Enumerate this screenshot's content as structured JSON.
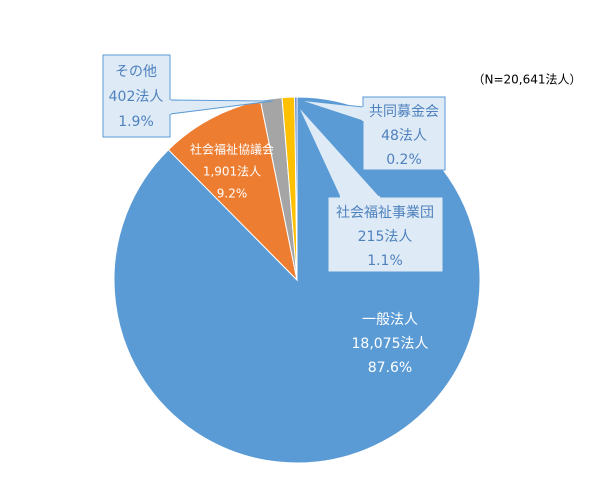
{
  "chart_data": {
    "type": "pie",
    "note": "（N=20,641法人）",
    "categories": [
      "一般法人",
      "社会福祉協議会",
      "その他",
      "社会福祉事業団",
      "共同募金会"
    ],
    "values": [
      87.6,
      9.2,
      1.9,
      1.1,
      0.2
    ],
    "value_labels": [
      "87.6%",
      "9.2%",
      "1.9%",
      "1.1%",
      "0.2%"
    ],
    "counts": [
      18075,
      1901,
      402,
      215,
      48
    ],
    "count_labels": [
      "18,075法人",
      "1,901法人",
      "402法人",
      "215法人",
      "48法人"
    ],
    "colors": [
      "#5b9bd5",
      "#ed7d31",
      "#a5a5a5",
      "#ffc000",
      "#4472c4"
    ]
  }
}
